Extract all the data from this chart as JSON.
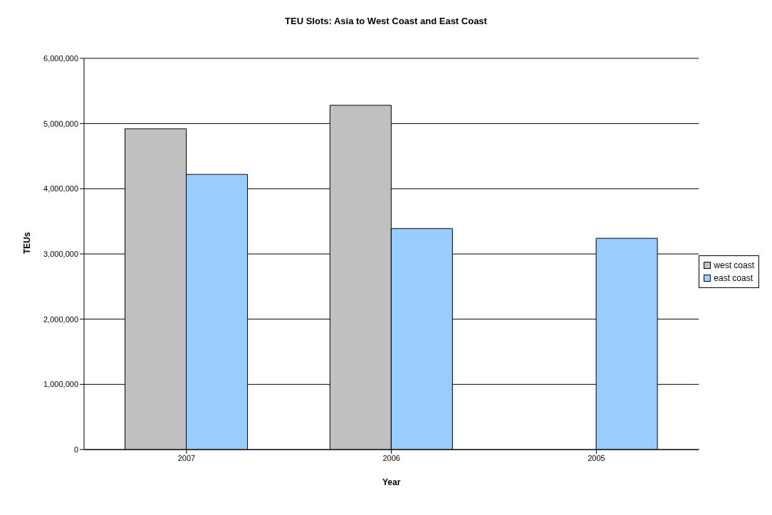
{
  "chart_data": {
    "type": "bar",
    "title": "TEU Slots: Asia to West Coast and East Coast",
    "xlabel": "Year",
    "ylabel": "TEUs",
    "categories": [
      "2007",
      "2006",
      "2005"
    ],
    "series": [
      {
        "name": "west coast",
        "color": "#c0c0c0",
        "values": [
          4920000,
          5280000,
          null
        ]
      },
      {
        "name": "east coast",
        "color": "#99ccff",
        "values": [
          4220000,
          3390000,
          3240000
        ]
      }
    ],
    "ylim": [
      0,
      6000000
    ],
    "yticks": [
      0,
      {
        "value": 1000000,
        "label": "1,000,000"
      },
      {
        "value": 2000000,
        "label": "2,000,000"
      },
      {
        "value": 3000000,
        "label": "3,000,000"
      },
      {
        "value": 4000000,
        "label": "4,000,000"
      },
      {
        "value": 5000000,
        "label": "5,000,000"
      },
      {
        "value": 6000000,
        "label": "6,000,000"
      }
    ],
    "grid": "y",
    "legend": "right"
  }
}
